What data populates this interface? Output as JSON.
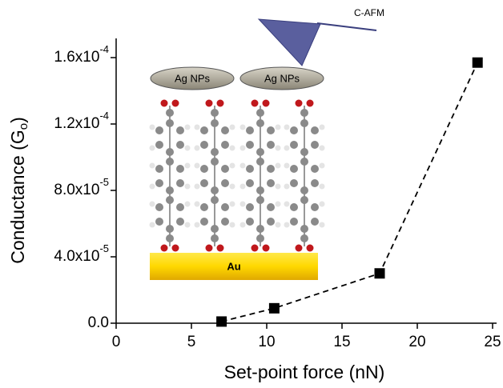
{
  "chart_data": {
    "type": "scatter",
    "x_label": "Set-point force (nN)",
    "y_label": {
      "text": "Conductance (G",
      "subscript": "o",
      "suffix": ")"
    },
    "xlim": [
      0,
      25
    ],
    "xticks": [
      0,
      5,
      10,
      15,
      20,
      25
    ],
    "ylim": [
      0,
      0.00016
    ],
    "yticks": [
      {
        "value": 0,
        "label": "0.0"
      },
      {
        "value": 4e-05,
        "label": "4.0x10",
        "exponent": "-5"
      },
      {
        "value": 8e-05,
        "label": "8.0x10",
        "exponent": "-5"
      },
      {
        "value": 0.00012,
        "label": "1.2x10",
        "exponent": "-4"
      },
      {
        "value": 0.00016,
        "label": "1.6x10",
        "exponent": "-4"
      }
    ],
    "series": [
      {
        "color": "#000000",
        "line_style": "dashed",
        "x": [
          7,
          10.5,
          17.5,
          24
        ],
        "y": [
          1e-06,
          9e-06,
          3e-05,
          0.000157
        ]
      }
    ],
    "annotations": {
      "np_left": "Ag NPs",
      "np_right": "Ag NPs",
      "substrate": "Au",
      "tip": "C-AFM"
    }
  }
}
